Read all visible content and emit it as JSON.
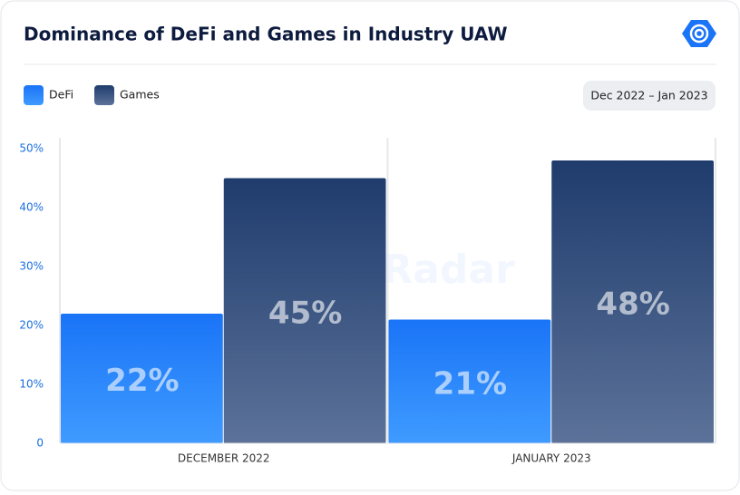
{
  "chart_data": {
    "type": "bar",
    "title": "Dominance of DeFi and Games in Industry UAW",
    "date_range": "Dec 2022 – Jan 2023",
    "watermark": "DappRadar",
    "categories": [
      "DECEMBER 2022",
      "JANUARY 2023"
    ],
    "series": [
      {
        "name": "DeFi",
        "color": "#1a74f7",
        "values": [
          22,
          21
        ],
        "value_labels": [
          "22%",
          "21%"
        ]
      },
      {
        "name": "Games",
        "color": "#23406f",
        "values": [
          45,
          48
        ],
        "value_labels": [
          "45%",
          "48%"
        ]
      }
    ],
    "ylim": [
      0,
      50
    ],
    "yticks": [
      0,
      {
        "value": 10,
        "label": "10%"
      },
      {
        "value": 20,
        "label": "20%"
      },
      {
        "value": 30,
        "label": "30%"
      },
      {
        "value": 40,
        "label": "40%"
      },
      {
        "value": 50,
        "label": "50%"
      }
    ],
    "legend": "top-left"
  }
}
